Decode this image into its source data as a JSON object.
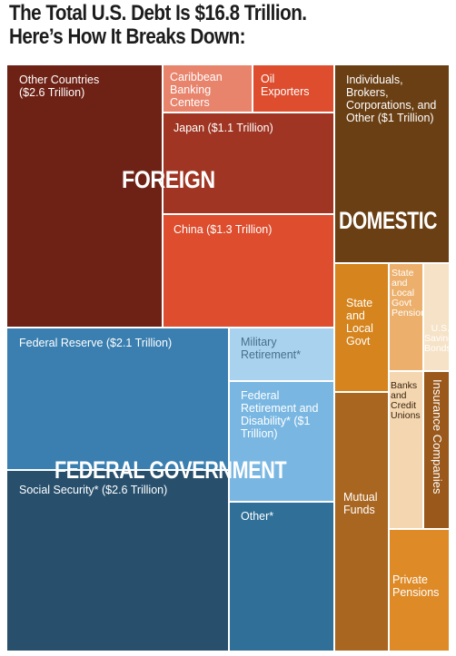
{
  "title_line1": "The Total U.S. Debt Is $16.8 Trillion.",
  "title_line2": "Here’s How It Breaks Down:",
  "chart_data": {
    "type": "treemap",
    "groups": [
      {
        "name": "FOREIGN",
        "color": "#b8402a",
        "items": [
          {
            "label": "Other Countries ($2.6 Trillion)",
            "value": 2.6
          },
          {
            "label": "Caribbean Banking Centers"
          },
          {
            "label": "Oil Exporters"
          },
          {
            "label": "Japan ($1.1 Trillion)",
            "value": 1.1
          },
          {
            "label": "China ($1.3 Trillion)",
            "value": 1.3
          }
        ]
      },
      {
        "name": "DOMESTIC",
        "color": "#c97a22",
        "items": [
          {
            "label": "Individuals, Brokers, Corporations, and Other ($1 Trillion)",
            "value": 1.0
          },
          {
            "label": "State and Local Govt"
          },
          {
            "label": "State and Local Govt Pensions"
          },
          {
            "label": "U.S. Savings Bonds"
          },
          {
            "label": "Banks and Credit Unions"
          },
          {
            "label": "Insurance Companies"
          },
          {
            "label": "Mutual Funds"
          },
          {
            "label": "Private Pensions"
          }
        ]
      },
      {
        "name": "FEDERAL GOVERNMENT",
        "color": "#2f6f98",
        "items": [
          {
            "label": "Federal Reserve ($2.1 Trillion)",
            "value": 2.1
          },
          {
            "label": "Military Retirement*"
          },
          {
            "label": "Federal Retirement and Disability* ($1 Trillion)",
            "value": 1.0
          },
          {
            "label": "Social Security* ($2.6 Trillion)",
            "value": 2.6
          },
          {
            "label": "Other*"
          }
        ]
      }
    ]
  },
  "colors": {
    "other_countries": "#6e2216",
    "caribbean": "#e8836c",
    "oil": "#dd4d2e",
    "japan": "#9f3522",
    "china": "#dd4d2e",
    "individuals": "#6a3f14",
    "state_local": "#d6841d",
    "pensions_sl": "#ecb06c",
    "savings": "#f6e2c6",
    "banks": "#f4d7b0",
    "insurance": "#9a581a",
    "mutual": "#a96620",
    "private": "#de8a27",
    "fed_reserve": "#3a7fb0",
    "military": "#a9d2ee",
    "fed_retire": "#79b7e2",
    "social": "#28506d",
    "other_fed": "#2f6f98"
  }
}
